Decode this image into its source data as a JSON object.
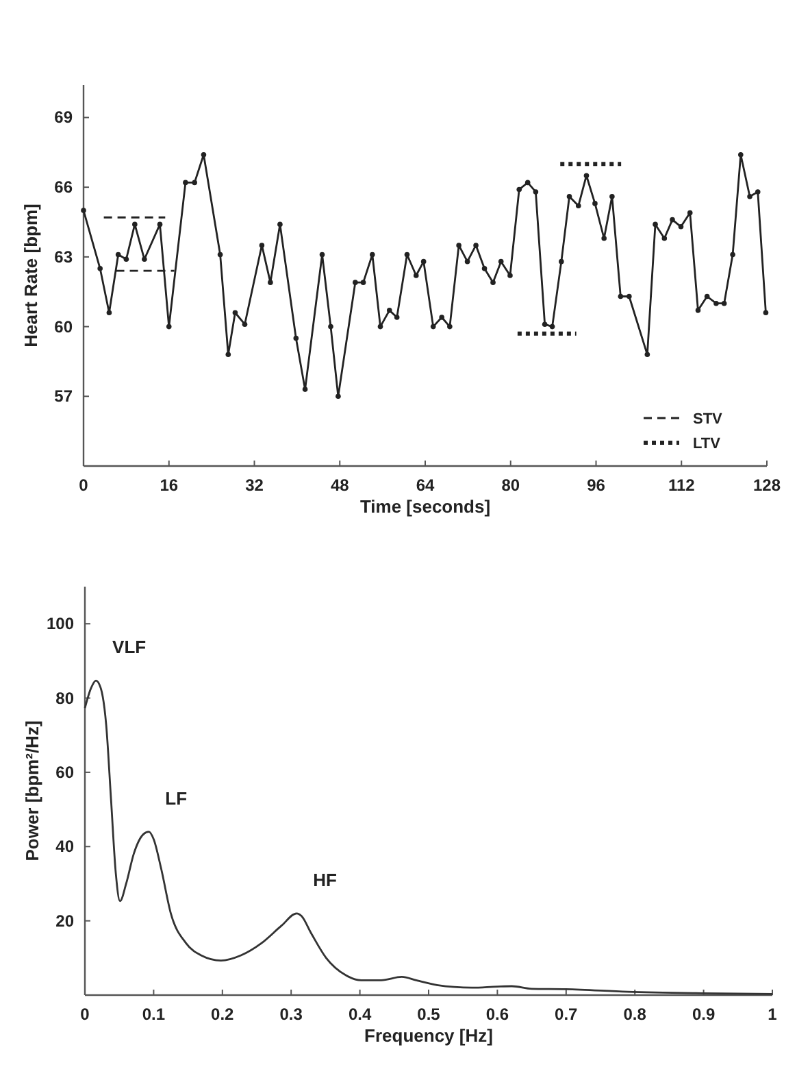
{
  "chart_data": [
    {
      "type": "line",
      "xlabel": "Time [seconds]",
      "ylabel": "Heart Rate [bpm]",
      "xlim": [
        0,
        128
      ],
      "xticks": [
        0,
        16,
        32,
        48,
        64,
        80,
        96,
        112,
        128
      ],
      "ylim": [
        54,
        70.4
      ],
      "yticks": [
        57,
        60,
        63,
        66,
        69
      ],
      "legend": "bottom right",
      "series": [
        {
          "color": "#222222",
          "marker": "circle",
          "line_style": "solid",
          "x": [
            0,
            3.1,
            4.8,
            6.5,
            8.0,
            9.6,
            11.4,
            14.3,
            16,
            19.1,
            20.8,
            22.5,
            25.6,
            27.1,
            28.4,
            30.2,
            33.4,
            35,
            36.8,
            39.8,
            41.5,
            44.7,
            46.3,
            47.7,
            50.9,
            52.4,
            54.1,
            55.6,
            57.3,
            58.7,
            60.6,
            62.3,
            63.7,
            65.5,
            67.1,
            68.6,
            70.3,
            71.9,
            73.5,
            75.1,
            76.7,
            78.2,
            79.9,
            81.6,
            83.2,
            84.7,
            86.4,
            87.8,
            89.5,
            91.0,
            92.7,
            94.2,
            95.8,
            97.5,
            99.0,
            100.6,
            102.2,
            105.6,
            107.1,
            108.8,
            110.3,
            111.9,
            113.6,
            115.1,
            116.8,
            118.5,
            120.0,
            121.6,
            123.1,
            124.8,
            126.3,
            127.8
          ],
          "values": [
            65.0,
            62.5,
            60.6,
            63.1,
            62.9,
            64.4,
            62.9,
            64.4,
            60.0,
            66.2,
            66.2,
            67.4,
            63.1,
            58.8,
            60.6,
            60.1,
            63.5,
            61.9,
            64.4,
            59.5,
            57.3,
            63.1,
            60.0,
            57.0,
            61.9,
            61.9,
            63.1,
            60.0,
            60.7,
            60.4,
            63.1,
            62.2,
            62.8,
            60.0,
            60.4,
            60.0,
            63.5,
            62.8,
            63.5,
            62.5,
            61.9,
            62.8,
            62.2,
            65.9,
            66.2,
            65.8,
            60.1,
            60.0,
            62.8,
            65.6,
            65.2,
            66.5,
            65.3,
            63.8,
            65.6,
            61.3,
            61.3,
            58.8,
            64.4,
            63.8,
            64.6,
            64.3,
            64.9,
            60.7,
            61.3,
            61.0,
            61.0,
            63.1,
            67.4,
            65.6,
            65.8,
            60.6
          ]
        },
        {
          "name": "STV",
          "color": "#222222",
          "marker": "none",
          "line_style": "dashed",
          "x": [
            3.8,
            15.3,
            10,
            6.1,
            17
          ],
          "values": [
            64.7,
            64.7,
            null,
            62.4,
            62.4
          ]
        },
        {
          "name": "LTV",
          "color": "#222222",
          "marker": "none",
          "line_style": "dotted",
          "x": [
            89.3,
            100.7,
            90,
            81.3,
            92.3
          ],
          "values": [
            67.0,
            67.0,
            null,
            59.7,
            59.7
          ]
        }
      ]
    },
    {
      "type": "line",
      "xlabel": "Frequency [Hz]",
      "ylabel": "Power [bpm²/Hz]",
      "xlim": [
        0,
        1
      ],
      "xticks": [
        0,
        0.1,
        0.2,
        0.3,
        0.4,
        0.5,
        0.6,
        0.7,
        0.8,
        0.9,
        1
      ],
      "ylim": [
        0,
        110
      ],
      "yticks": [
        20,
        40,
        60,
        80,
        100
      ],
      "series": [
        {
          "color": "#333333",
          "marker": "none",
          "line_style": "solid",
          "x": [
            0,
            0.009,
            0.016,
            0.023,
            0.031,
            0.038,
            0.045,
            0.051,
            0.06,
            0.071,
            0.085,
            0.093,
            0.1,
            0.111,
            0.125,
            0.147,
            0.169,
            0.198,
            0.227,
            0.257,
            0.286,
            0.308,
            0.315,
            0.329,
            0.351,
            0.38,
            0.402,
            0.431,
            0.461,
            0.482,
            0.512,
            0.563,
            0.6,
            0.621,
            0.65,
            0.7,
            0.789,
            0.898,
            1
          ],
          "values": [
            77.3,
            82.7,
            84.7,
            82.7,
            72.7,
            52.7,
            32.7,
            25.3,
            30,
            38,
            43.3,
            44,
            42,
            34,
            22,
            14,
            10.7,
            9.3,
            10.7,
            14,
            18.7,
            22,
            21.3,
            16.7,
            10,
            5.3,
            4,
            4,
            4.9,
            4,
            2.7,
            2,
            2.3,
            2.4,
            1.7,
            1.6,
            0.9,
            0.5,
            0.3
          ]
        }
      ],
      "annotations": [
        {
          "text": "VLF",
          "x": 0.016,
          "y": 84.7
        },
        {
          "text": "LF",
          "x": 0.093,
          "y": 44
        },
        {
          "text": "HF",
          "x": 0.308,
          "y": 22
        }
      ]
    }
  ]
}
